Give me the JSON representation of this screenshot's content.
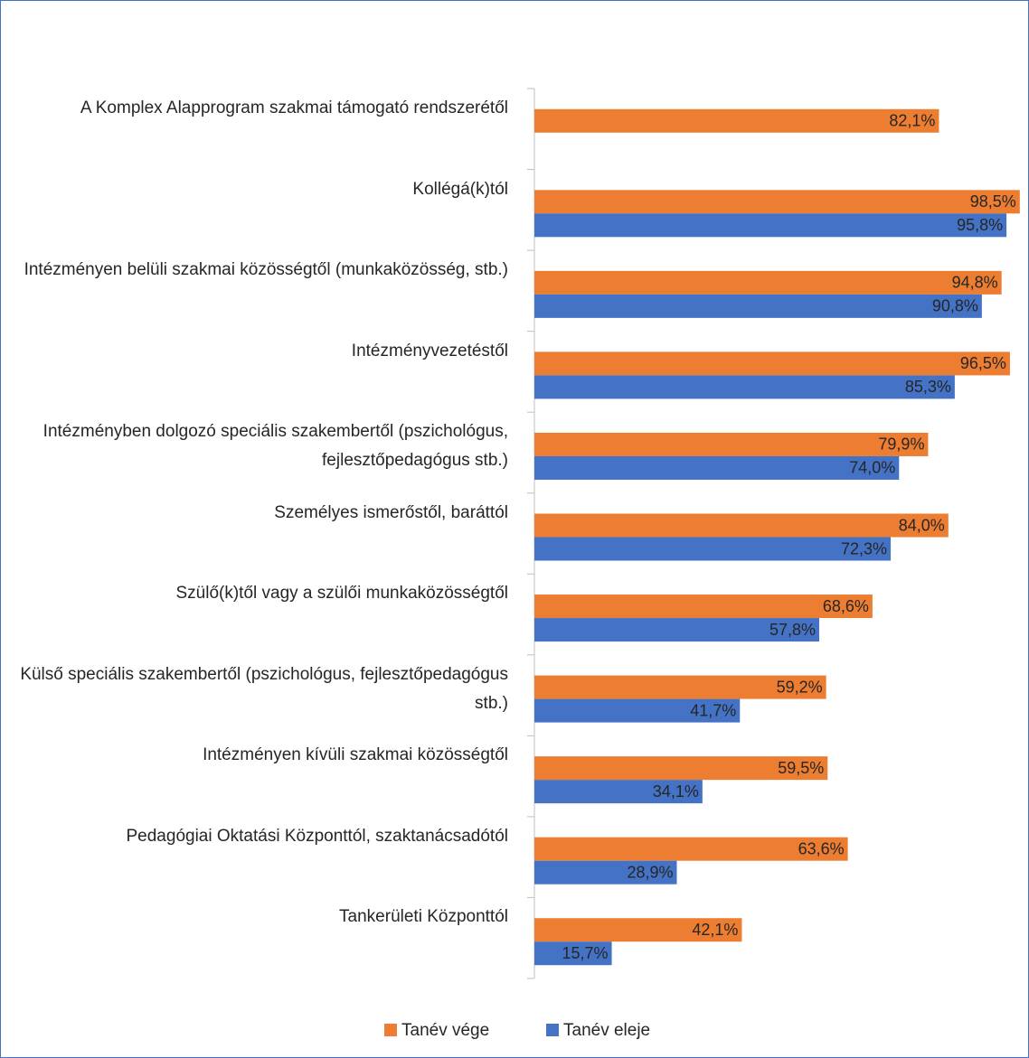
{
  "chart_data": {
    "type": "bar",
    "orientation": "horizontal",
    "categories": [
      "A Komplex Alapprogram szakmai támogató rendszerétől",
      "Kollégá(k)tól",
      "Intézményen belüli szakmai közösségtől (munkaközösség, stb.)",
      "Intézményvezetéstől",
      "Intézményben dolgozó speciális szakembertől (pszichológus, fejlesztőpedagógus stb.)",
      "Személyes ismerőstől, baráttól",
      "Szülő(k)től vagy a szülői munkaközösségtől",
      "Külső speciális szakembertől (pszichológus, fejlesztőpedagógus stb.)",
      "Intézményen kívüli szakmai közösségtől",
      "Pedagógiai Oktatási Központtól, szaktanácsadótól",
      "Tankerületi Központtól"
    ],
    "series": [
      {
        "name": "Tanév vége",
        "color": "#ed7d31",
        "values": [
          82.1,
          98.5,
          94.8,
          96.5,
          79.9,
          84.0,
          68.6,
          59.2,
          59.5,
          63.6,
          42.1
        ],
        "value_labels": [
          "82,1%",
          "98,5%",
          "94,8%",
          "96,5%",
          "79,9%",
          "84,0%",
          "68,6%",
          "59,2%",
          "59,5%",
          "63,6%",
          "42,1%"
        ]
      },
      {
        "name": "Tanév eleje",
        "color": "#4472c4",
        "values": [
          null,
          95.8,
          90.8,
          85.3,
          74.0,
          72.3,
          57.8,
          41.7,
          34.1,
          28.9,
          15.7
        ],
        "value_labels": [
          null,
          "95,8%",
          "90,8%",
          "85,3%",
          "74,0%",
          "72,3%",
          "57,8%",
          "41,7%",
          "34,1%",
          "28,9%",
          "15,7%"
        ]
      }
    ],
    "xlim": [
      0,
      100
    ],
    "legend": "bottom"
  }
}
